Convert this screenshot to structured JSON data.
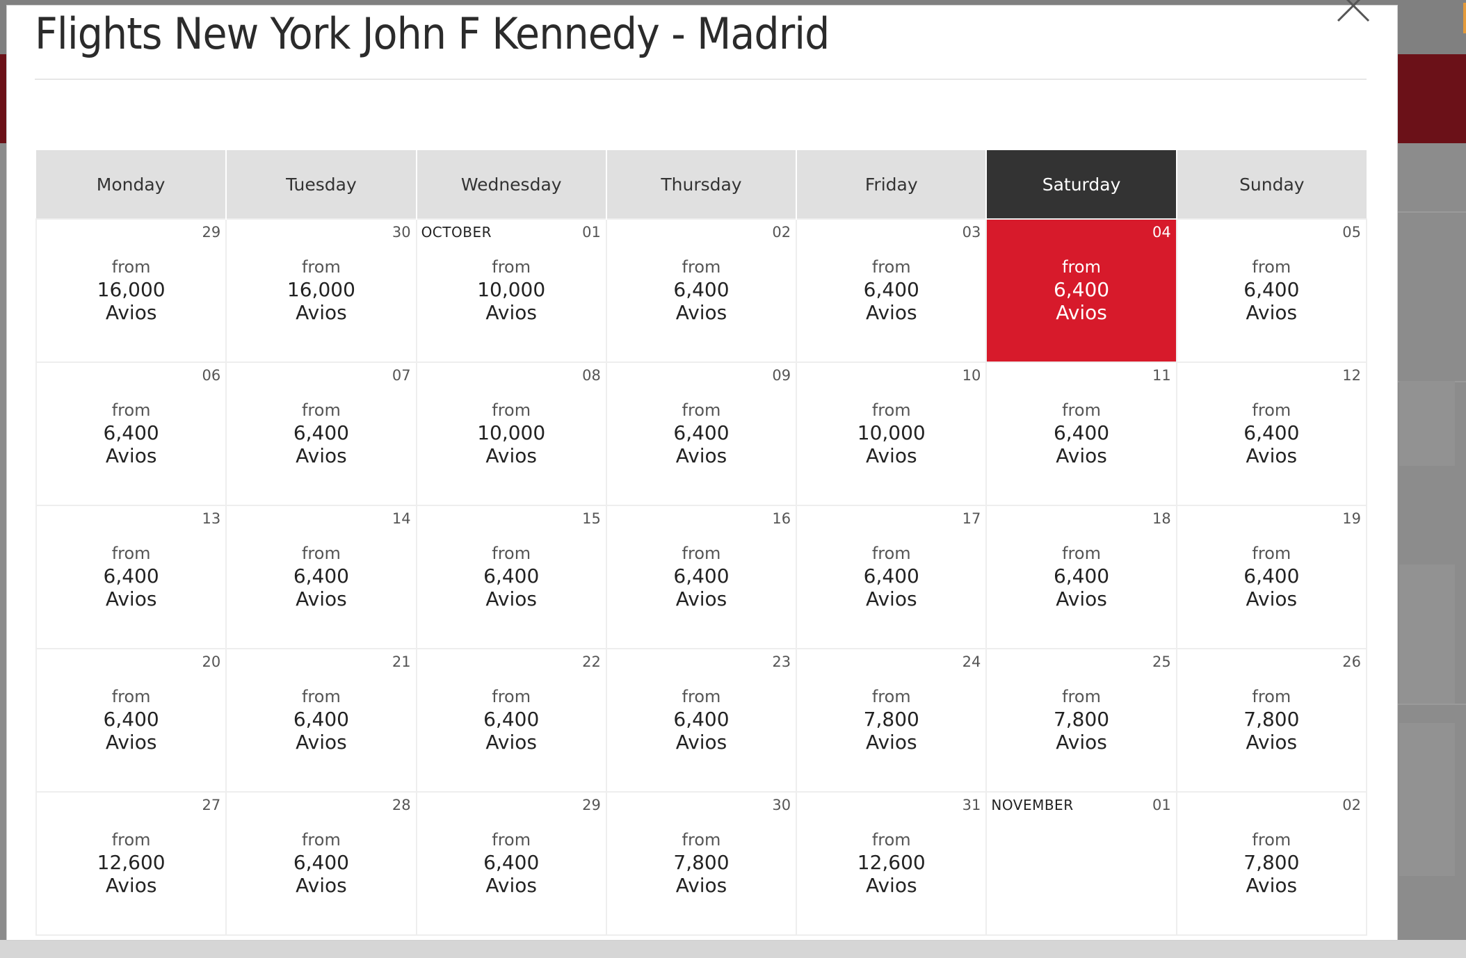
{
  "modal": {
    "title": "Flights New York John F Kennedy - Madrid",
    "close_icon": "close-icon"
  },
  "calendar": {
    "days": [
      "Monday",
      "Tuesday",
      "Wednesday",
      "Thursday",
      "Friday",
      "Saturday",
      "Sunday"
    ],
    "selected_day_index": 5,
    "weeks": [
      [
        {
          "day": "29",
          "from": "from",
          "price": "16,000",
          "unit": "Avios"
        },
        {
          "day": "30",
          "from": "from",
          "price": "16,000",
          "unit": "Avios"
        },
        {
          "day": "01",
          "month": "OCTOBER",
          "from": "from",
          "price": "10,000",
          "unit": "Avios"
        },
        {
          "day": "02",
          "from": "from",
          "price": "6,400",
          "unit": "Avios"
        },
        {
          "day": "03",
          "from": "from",
          "price": "6,400",
          "unit": "Avios"
        },
        {
          "day": "04",
          "from": "from",
          "price": "6,400",
          "unit": "Avios",
          "selected": true
        },
        {
          "day": "05",
          "from": "from",
          "price": "6,400",
          "unit": "Avios"
        }
      ],
      [
        {
          "day": "06",
          "from": "from",
          "price": "6,400",
          "unit": "Avios"
        },
        {
          "day": "07",
          "from": "from",
          "price": "6,400",
          "unit": "Avios"
        },
        {
          "day": "08",
          "from": "from",
          "price": "10,000",
          "unit": "Avios"
        },
        {
          "day": "09",
          "from": "from",
          "price": "6,400",
          "unit": "Avios"
        },
        {
          "day": "10",
          "from": "from",
          "price": "10,000",
          "unit": "Avios"
        },
        {
          "day": "11",
          "from": "from",
          "price": "6,400",
          "unit": "Avios"
        },
        {
          "day": "12",
          "from": "from",
          "price": "6,400",
          "unit": "Avios"
        }
      ],
      [
        {
          "day": "13",
          "from": "from",
          "price": "6,400",
          "unit": "Avios"
        },
        {
          "day": "14",
          "from": "from",
          "price": "6,400",
          "unit": "Avios"
        },
        {
          "day": "15",
          "from": "from",
          "price": "6,400",
          "unit": "Avios"
        },
        {
          "day": "16",
          "from": "from",
          "price": "6,400",
          "unit": "Avios"
        },
        {
          "day": "17",
          "from": "from",
          "price": "6,400",
          "unit": "Avios"
        },
        {
          "day": "18",
          "from": "from",
          "price": "6,400",
          "unit": "Avios"
        },
        {
          "day": "19",
          "from": "from",
          "price": "6,400",
          "unit": "Avios"
        }
      ],
      [
        {
          "day": "20",
          "from": "from",
          "price": "6,400",
          "unit": "Avios"
        },
        {
          "day": "21",
          "from": "from",
          "price": "6,400",
          "unit": "Avios"
        },
        {
          "day": "22",
          "from": "from",
          "price": "6,400",
          "unit": "Avios"
        },
        {
          "day": "23",
          "from": "from",
          "price": "6,400",
          "unit": "Avios"
        },
        {
          "day": "24",
          "from": "from",
          "price": "7,800",
          "unit": "Avios"
        },
        {
          "day": "25",
          "from": "from",
          "price": "7,800",
          "unit": "Avios"
        },
        {
          "day": "26",
          "from": "from",
          "price": "7,800",
          "unit": "Avios"
        }
      ],
      [
        {
          "day": "27",
          "from": "from",
          "price": "12,600",
          "unit": "Avios"
        },
        {
          "day": "28",
          "from": "from",
          "price": "6,400",
          "unit": "Avios"
        },
        {
          "day": "29",
          "from": "from",
          "price": "6,400",
          "unit": "Avios"
        },
        {
          "day": "30",
          "from": "from",
          "price": "7,800",
          "unit": "Avios"
        },
        {
          "day": "31",
          "from": "from",
          "price": "12,600",
          "unit": "Avios"
        },
        {
          "day": "01",
          "month": "NOVEMBER"
        },
        {
          "day": "02",
          "from": "from",
          "price": "7,800",
          "unit": "Avios"
        }
      ]
    ]
  },
  "colors": {
    "selected_cell": "#d71a2b",
    "selected_header": "#333333",
    "header_bg": "#e0e0e0",
    "background_band": "#6b1118"
  }
}
